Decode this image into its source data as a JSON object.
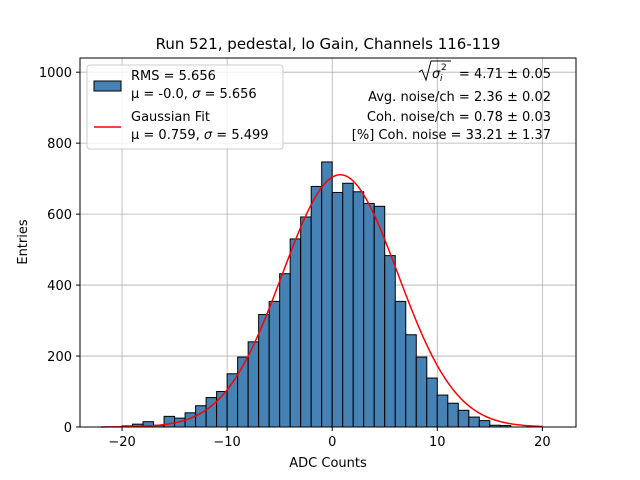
{
  "chart_data": {
    "type": "bar",
    "title": "Run 521, pedestal, lo Gain, Channels 116-119",
    "xlabel": "ADC Counts",
    "ylabel": "Entries",
    "xlim": [
      -24,
      23.2
    ],
    "ylim": [
      0,
      1040
    ],
    "grid": true,
    "x_ticks": [
      -20,
      -10,
      0,
      10,
      20
    ],
    "x_tick_labels": [
      "−20",
      "−10",
      "0",
      "10",
      "20"
    ],
    "y_ticks": [
      0,
      200,
      400,
      600,
      800,
      1000
    ],
    "y_tick_labels": [
      "0",
      "200",
      "400",
      "600",
      "800",
      "1000"
    ],
    "bin_edges_start": -22,
    "bin_width": 1,
    "histogram_counts": [
      0,
      0,
      3,
      8,
      15,
      5,
      30,
      25,
      40,
      60,
      83,
      100,
      150,
      197,
      240,
      317,
      354,
      432,
      530,
      592,
      678,
      747,
      661,
      687,
      663,
      630,
      622,
      483,
      354,
      260,
      197,
      138,
      90,
      67,
      47,
      28,
      18,
      5,
      4,
      0,
      0,
      0,
      0
    ],
    "fit": {
      "mu": 0.759,
      "sigma": 5.499,
      "amplitude": 711,
      "x_range": [
        -22,
        20
      ]
    },
    "legend": {
      "placement": "upper-left",
      "entries": [
        {
          "line1": "RMS = 5.656",
          "line2_prefix": "μ = -0.0, ",
          "line2_suffix": " = 5.656",
          "color": "#4682b4"
        },
        {
          "line1": "Gaussian Fit",
          "line2_prefix": "μ = 0.759, ",
          "line2_suffix": " = 5.499",
          "color": "#ff0000"
        }
      ],
      "sigma_symbol": "σ"
    },
    "annotations": {
      "sqrt_sigma_value": " = 4.71 ± 0.05",
      "sigma_symbol": "σ",
      "sigma_sub": "i",
      "sigma_sup": "2",
      "avg_noise": "Avg. noise/ch = 2.36 ± 0.02",
      "coh_noise": "Coh. noise/ch = 0.78 ± 0.03",
      "pct_coh_noise": "[%] Coh. noise = 33.21 ± 1.37"
    },
    "colors": {
      "bar_fill": "#4682b4",
      "bar_edge": "#000000",
      "fit_line": "#ff0000",
      "grid": "#b0b0b0"
    }
  }
}
